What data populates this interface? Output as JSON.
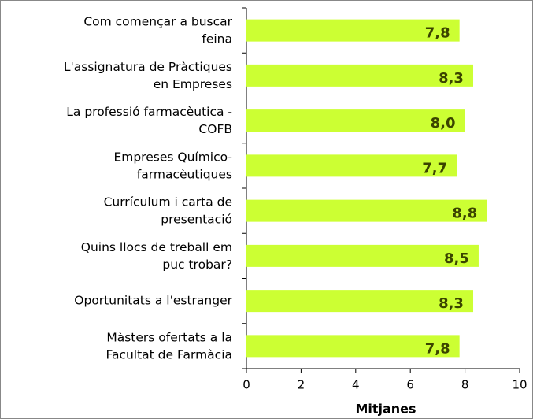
{
  "chart_data": {
    "type": "barh",
    "categories": [
      "Com començar a buscar\nfeina",
      "L'assignatura de Pràctiques\nen Empreses",
      "La professió farmacèutica -\nCOFB",
      "Empreses Químico-\nfarmacèutiques",
      "Currículum i carta de\npresentació",
      "Quins llocs de treball em\npuc trobar?",
      "Oportunitats a l'estranger",
      "Màsters ofertats a la\nFacultat de Farmàcia"
    ],
    "values": [
      7.8,
      8.3,
      8.0,
      7.7,
      8.8,
      8.5,
      8.3,
      7.8
    ],
    "value_labels": [
      "7,8",
      "8,3",
      "8,0",
      "7,7",
      "8,8",
      "8,5",
      "8,3",
      "7,8"
    ],
    "color": "#ccff33",
    "xlabel": "Mitjanes",
    "xlim": [
      0,
      10
    ],
    "xticks": [
      0,
      2,
      4,
      6,
      8,
      10
    ]
  }
}
